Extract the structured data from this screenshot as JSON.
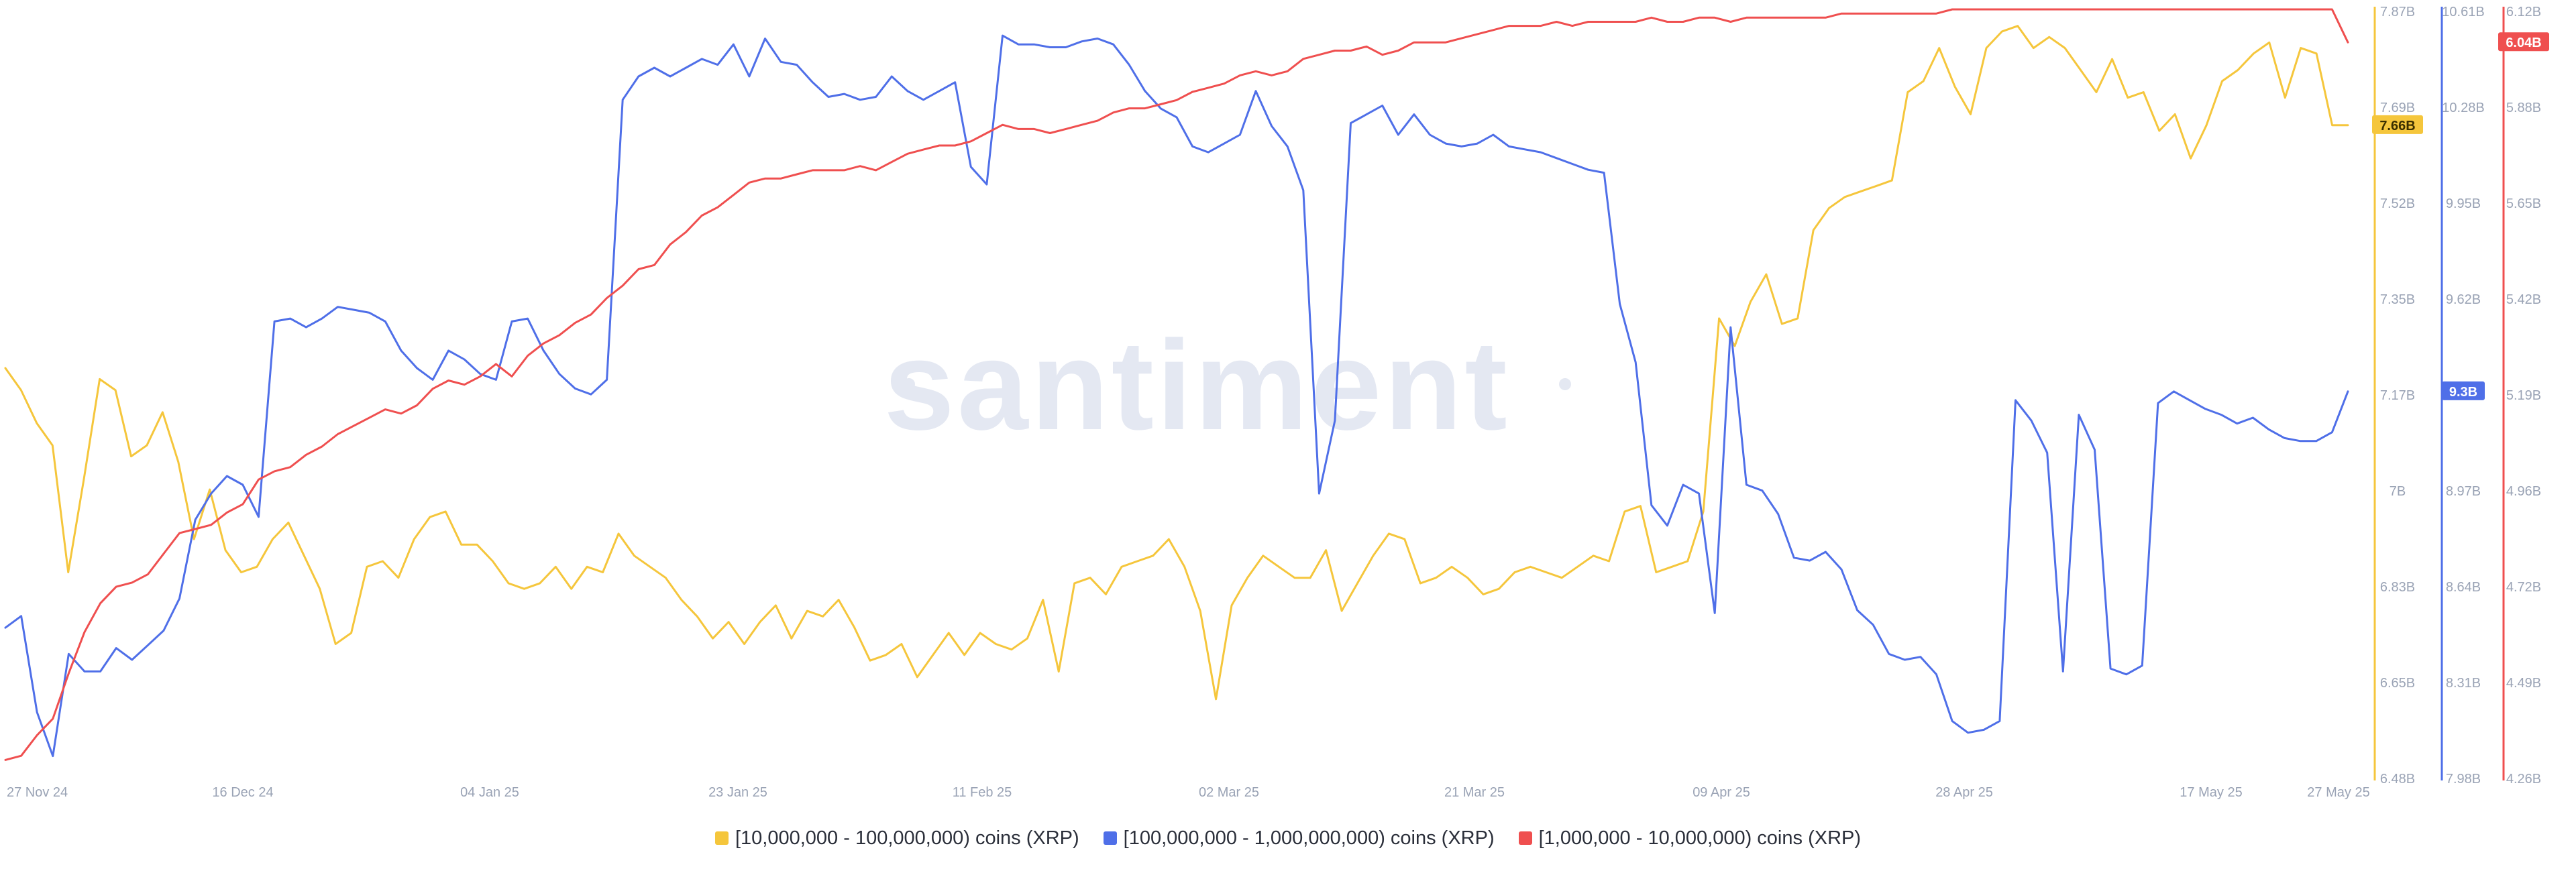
{
  "watermark": "santiment",
  "colors": {
    "series_yellow": "#f5c63c",
    "series_blue": "#4f6fe8",
    "series_red": "#ef4f4f",
    "axis_text": "#9aa3b5",
    "watermark": "#e4e8f2"
  },
  "x_axis": {
    "ticks": [
      "27 Nov 24",
      "16 Dec 24",
      "04 Jan 25",
      "23 Jan 25",
      "11 Feb 25",
      "02 Mar 25",
      "21 Mar 25",
      "09 Apr 25",
      "28 Apr 25",
      "17 May 25",
      "27 May 25"
    ]
  },
  "axes": {
    "yellow": {
      "ticks": [
        "7.87B",
        "7.69B",
        "7.52B",
        "7.35B",
        "7.17B",
        "7B",
        "6.83B",
        "6.65B",
        "6.48B"
      ],
      "current": "7.66B"
    },
    "blue": {
      "ticks": [
        "10.61B",
        "10.28B",
        "9.95B",
        "9.62B",
        "9.3B",
        "8.97B",
        "8.64B",
        "8.31B",
        "7.98B"
      ],
      "current": "9.3B"
    },
    "red": {
      "ticks": [
        "6.12B",
        "5.88B",
        "5.65B",
        "5.42B",
        "5.19B",
        "4.96B",
        "4.72B",
        "4.49B",
        "4.26B"
      ],
      "current": "6.04B"
    }
  },
  "legend": [
    {
      "label": "[10,000,000 - 100,000,000) coins (XRP)",
      "color": "#f5c63c"
    },
    {
      "label": "[100,000,000 - 1,000,000,000) coins (XRP)",
      "color": "#4f6fe8"
    },
    {
      "label": "[1,000,000 - 10,000,000) coins (XRP)",
      "color": "#ef4f4f"
    }
  ],
  "chart_data": {
    "type": "line",
    "x_start": "2024-11-27",
    "x_end": "2025-05-27",
    "series": [
      {
        "name": "[10,000,000 - 100,000,000) coins (XRP)",
        "axis": "yellow",
        "ylim": [
          6.48,
          7.87
        ],
        "values": [
          7.22,
          7.18,
          7.12,
          7.08,
          6.85,
          7.02,
          7.2,
          7.18,
          7.06,
          7.08,
          7.14,
          7.05,
          6.91,
          7.0,
          6.89,
          6.85,
          6.86,
          6.91,
          6.94,
          6.88,
          6.82,
          6.72,
          6.74,
          6.86,
          6.87,
          6.84,
          6.91,
          6.95,
          6.96,
          6.9,
          6.9,
          6.87,
          6.83,
          6.82,
          6.83,
          6.86,
          6.82,
          6.86,
          6.85,
          6.92,
          6.88,
          6.86,
          6.84,
          6.8,
          6.77,
          6.73,
          6.76,
          6.72,
          6.76,
          6.79,
          6.73,
          6.78,
          6.77,
          6.8,
          6.75,
          6.69,
          6.7,
          6.72,
          6.66,
          6.7,
          6.74,
          6.7,
          6.74,
          6.72,
          6.71,
          6.73,
          6.8,
          6.67,
          6.83,
          6.84,
          6.81,
          6.86,
          6.87,
          6.88,
          6.91,
          6.86,
          6.78,
          6.62,
          6.79,
          6.84,
          6.88,
          6.86,
          6.84,
          6.84,
          6.89,
          6.78,
          6.83,
          6.88,
          6.92,
          6.91,
          6.83,
          6.84,
          6.86,
          6.84,
          6.81,
          6.82,
          6.85,
          6.86,
          6.85,
          6.84,
          6.86,
          6.88,
          6.87,
          6.96,
          6.97,
          6.85,
          6.86,
          6.87,
          6.96,
          7.31,
          7.26,
          7.34,
          7.39,
          7.3,
          7.31,
          7.47,
          7.51,
          7.53,
          7.54,
          7.55,
          7.56,
          7.72,
          7.74,
          7.8,
          7.73,
          7.68,
          7.8,
          7.83,
          7.84,
          7.8,
          7.82,
          7.8,
          7.76,
          7.72,
          7.78,
          7.71,
          7.72,
          7.65,
          7.68,
          7.6,
          7.66,
          7.74,
          7.76,
          7.79,
          7.81,
          7.71,
          7.8,
          7.79,
          7.66,
          7.66
        ]
      },
      {
        "name": "[100,000,000 - 1,000,000,000) coins (XRP)",
        "axis": "blue",
        "ylim": [
          7.98,
          10.61
        ],
        "values": [
          8.49,
          8.53,
          8.2,
          8.05,
          8.4,
          8.34,
          8.34,
          8.42,
          8.38,
          8.43,
          8.48,
          8.59,
          8.86,
          8.95,
          9.01,
          8.98,
          8.87,
          9.54,
          9.55,
          9.52,
          9.55,
          9.59,
          9.58,
          9.57,
          9.54,
          9.44,
          9.38,
          9.34,
          9.44,
          9.41,
          9.36,
          9.34,
          9.54,
          9.55,
          9.44,
          9.36,
          9.31,
          9.29,
          9.34,
          10.3,
          10.38,
          10.41,
          10.38,
          10.41,
          10.44,
          10.42,
          10.49,
          10.38,
          10.51,
          10.43,
          10.42,
          10.36,
          10.31,
          10.32,
          10.3,
          10.31,
          10.38,
          10.33,
          10.3,
          10.33,
          10.36,
          10.07,
          10.01,
          10.52,
          10.49,
          10.49,
          10.48,
          10.48,
          10.5,
          10.51,
          10.49,
          10.42,
          10.33,
          10.27,
          10.24,
          10.14,
          10.12,
          10.15,
          10.18,
          10.33,
          10.21,
          10.14,
          9.99,
          8.95,
          9.2,
          10.22,
          10.25,
          10.28,
          10.18,
          10.25,
          10.18,
          10.15,
          10.14,
          10.15,
          10.18,
          10.14,
          10.13,
          10.12,
          10.1,
          10.08,
          10.06,
          10.05,
          9.6,
          9.4,
          8.91,
          8.84,
          8.98,
          8.95,
          8.54,
          9.52,
          8.98,
          8.96,
          8.88,
          8.73,
          8.72,
          8.75,
          8.69,
          8.55,
          8.5,
          8.4,
          8.38,
          8.39,
          8.33,
          8.17,
          8.13,
          8.14,
          8.17,
          9.27,
          9.2,
          9.09,
          8.34,
          9.22,
          9.1,
          8.35,
          8.33,
          8.36,
          9.26,
          9.3,
          9.27,
          9.24,
          9.22,
          9.19,
          9.21,
          9.17,
          9.14,
          9.13,
          9.13,
          9.16,
          9.3
        ]
      },
      {
        "name": "[1,000,000 - 10,000,000) coins (XRP)",
        "axis": "red",
        "ylim": [
          4.26,
          6.12
        ],
        "values": [
          4.3,
          4.31,
          4.36,
          4.4,
          4.51,
          4.61,
          4.68,
          4.72,
          4.73,
          4.75,
          4.8,
          4.85,
          4.86,
          4.87,
          4.9,
          4.92,
          4.98,
          5.0,
          5.01,
          5.04,
          5.06,
          5.09,
          5.11,
          5.13,
          5.15,
          5.14,
          5.16,
          5.2,
          5.22,
          5.21,
          5.23,
          5.26,
          5.23,
          5.28,
          5.31,
          5.33,
          5.36,
          5.38,
          5.42,
          5.45,
          5.49,
          5.5,
          5.55,
          5.58,
          5.62,
          5.64,
          5.67,
          5.7,
          5.71,
          5.71,
          5.72,
          5.73,
          5.73,
          5.73,
          5.74,
          5.73,
          5.75,
          5.77,
          5.78,
          5.79,
          5.79,
          5.8,
          5.82,
          5.84,
          5.83,
          5.83,
          5.82,
          5.83,
          5.84,
          5.85,
          5.87,
          5.88,
          5.88,
          5.89,
          5.9,
          5.92,
          5.93,
          5.94,
          5.96,
          5.97,
          5.96,
          5.97,
          6.0,
          6.01,
          6.02,
          6.02,
          6.03,
          6.01,
          6.02,
          6.04,
          6.04,
          6.04,
          6.05,
          6.06,
          6.07,
          6.08,
          6.08,
          6.08,
          6.09,
          6.08,
          6.09,
          6.09,
          6.09,
          6.09,
          6.1,
          6.09,
          6.09,
          6.1,
          6.1,
          6.09,
          6.1,
          6.1,
          6.1,
          6.1,
          6.1,
          6.1,
          6.11,
          6.11,
          6.11,
          6.11,
          6.11,
          6.11,
          6.11,
          6.12,
          6.12,
          6.12,
          6.12,
          6.12,
          6.12,
          6.12,
          6.12,
          6.12,
          6.12,
          6.12,
          6.12,
          6.12,
          6.12,
          6.12,
          6.12,
          6.12,
          6.12,
          6.12,
          6.12,
          6.12,
          6.12,
          6.12,
          6.12,
          6.12,
          6.04
        ]
      }
    ]
  }
}
